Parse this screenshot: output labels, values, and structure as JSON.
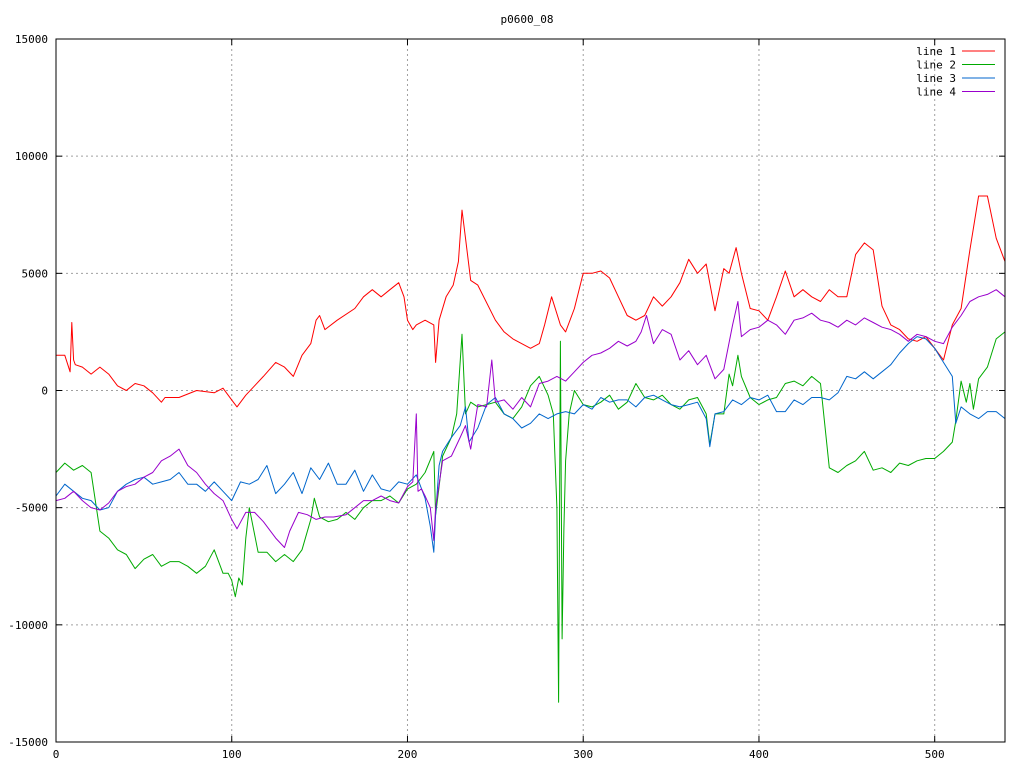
{
  "chart_data": {
    "type": "line",
    "title": "p0600_08",
    "xlabel": "",
    "ylabel": "",
    "xlim": [
      0,
      540
    ],
    "ylim": [
      -15000,
      15000
    ],
    "x_ticks": [
      0,
      100,
      200,
      300,
      400,
      500
    ],
    "y_ticks": [
      -15000,
      -10000,
      -5000,
      0,
      5000,
      10000,
      15000
    ],
    "grid": true,
    "legend_position": "top-right",
    "series": [
      {
        "name": "line 1",
        "color": "#ff0000",
        "x": [
          0,
          5,
          8,
          9,
          10,
          11,
          15,
          20,
          25,
          30,
          35,
          40,
          45,
          50,
          55,
          60,
          62,
          70,
          80,
          90,
          95,
          100,
          103,
          108,
          113,
          118,
          125,
          130,
          135,
          140,
          145,
          148,
          150,
          153,
          160,
          170,
          175,
          180,
          185,
          190,
          195,
          198,
          200,
          203,
          205,
          210,
          215,
          216,
          218,
          222,
          226,
          229,
          231,
          233,
          236,
          240,
          250,
          255,
          260,
          270,
          275,
          278,
          282,
          287,
          290,
          295,
          300,
          305,
          310,
          315,
          320,
          325,
          330,
          335,
          340,
          345,
          350,
          355,
          360,
          365,
          370,
          375,
          380,
          383,
          387,
          390,
          395,
          400,
          405,
          410,
          415,
          420,
          425,
          430,
          435,
          440,
          445,
          450,
          455,
          460,
          465,
          470,
          475,
          480,
          485,
          490,
          495,
          500,
          505,
          510,
          515,
          520,
          525,
          530,
          535,
          540
        ],
        "values": [
          1500,
          1500,
          800,
          2900,
          1300,
          1100,
          1000,
          700,
          1000,
          700,
          200,
          0,
          300,
          200,
          -100,
          -500,
          -300,
          -300,
          0,
          -100,
          100,
          -400,
          -700,
          -200,
          200,
          600,
          1200,
          1000,
          600,
          1500,
          2000,
          3000,
          3200,
          2600,
          3000,
          3500,
          4000,
          4300,
          4000,
          4300,
          4600,
          4000,
          3000,
          2600,
          2800,
          3000,
          2800,
          1200,
          3000,
          4000,
          4500,
          5500,
          7700,
          6500,
          4700,
          4500,
          3000,
          2500,
          2200,
          1800,
          2000,
          2800,
          4000,
          2800,
          2500,
          3500,
          5000,
          5000,
          5100,
          4800,
          4000,
          3200,
          3000,
          3200,
          4000,
          3600,
          4000,
          4600,
          5600,
          5000,
          5400,
          3400,
          5200,
          5000,
          6100,
          5000,
          3500,
          3400,
          3000,
          4000,
          5100,
          4000,
          4300,
          4000,
          3800,
          4300,
          4000,
          4000,
          5800,
          6300,
          6000,
          3600,
          2800,
          2600,
          2200,
          2100,
          2300,
          1800,
          1300,
          2800,
          3500,
          6000,
          8300,
          8300,
          6500,
          5500
        ]
      },
      {
        "name": "line 2",
        "color": "#00aa00",
        "x": [
          0,
          5,
          10,
          15,
          20,
          25,
          30,
          35,
          40,
          45,
          50,
          55,
          60,
          65,
          70,
          75,
          80,
          85,
          90,
          95,
          98,
          100,
          102,
          104,
          106,
          108,
          110,
          115,
          120,
          125,
          130,
          135,
          140,
          145,
          147,
          150,
          155,
          160,
          165,
          170,
          175,
          180,
          185,
          190,
          195,
          200,
          205,
          210,
          215,
          216,
          218,
          220,
          225,
          228,
          231,
          233,
          236,
          240,
          245,
          250,
          255,
          260,
          265,
          270,
          275,
          280,
          283,
          285,
          286,
          287,
          288,
          289,
          290,
          292,
          295,
          300,
          305,
          310,
          315,
          320,
          325,
          330,
          335,
          340,
          345,
          350,
          355,
          360,
          365,
          370,
          372,
          375,
          380,
          383,
          385,
          388,
          390,
          395,
          400,
          405,
          410,
          415,
          420,
          425,
          430,
          435,
          440,
          445,
          450,
          455,
          460,
          465,
          470,
          475,
          480,
          485,
          490,
          495,
          500,
          505,
          510,
          512,
          515,
          518,
          520,
          522,
          525,
          530,
          535,
          540
        ],
        "values": [
          -3500,
          -3100,
          -3400,
          -3200,
          -3500,
          -6000,
          -6300,
          -6800,
          -7000,
          -7600,
          -7200,
          -7000,
          -7500,
          -7300,
          -7300,
          -7500,
          -7800,
          -7500,
          -6800,
          -7800,
          -7800,
          -8100,
          -8800,
          -8000,
          -8300,
          -6300,
          -5000,
          -6900,
          -6900,
          -7300,
          -7000,
          -7300,
          -6800,
          -5500,
          -4600,
          -5400,
          -5600,
          -5500,
          -5200,
          -5500,
          -5000,
          -4700,
          -4700,
          -4500,
          -4800,
          -4200,
          -4000,
          -3500,
          -2600,
          -5300,
          -4100,
          -2800,
          -2000,
          -1000,
          2400,
          -1000,
          -500,
          -700,
          -600,
          -500,
          -1000,
          -1200,
          -700,
          200,
          600,
          -200,
          -1000,
          -5000,
          -13300,
          2100,
          -10600,
          -5900,
          -3000,
          -1000,
          0,
          -600,
          -700,
          -500,
          -200,
          -800,
          -500,
          300,
          -300,
          -400,
          -200,
          -600,
          -800,
          -400,
          -300,
          -1000,
          -2300,
          -1000,
          -1000,
          700,
          200,
          1500,
          600,
          -300,
          -600,
          -400,
          -300,
          300,
          400,
          200,
          600,
          300,
          -3300,
          -3500,
          -3200,
          -3000,
          -2600,
          -3400,
          -3300,
          -3500,
          -3100,
          -3200,
          -3000,
          -2900,
          -2900,
          -2600,
          -2200,
          -1300,
          400,
          -500,
          300,
          -800,
          500,
          1000,
          2200,
          2500
        ]
      },
      {
        "name": "line 3",
        "color": "#0066cc",
        "x": [
          0,
          5,
          10,
          15,
          20,
          25,
          30,
          35,
          40,
          45,
          50,
          55,
          60,
          65,
          70,
          75,
          80,
          85,
          90,
          95,
          100,
          105,
          110,
          115,
          120,
          125,
          130,
          135,
          140,
          145,
          150,
          155,
          160,
          165,
          170,
          175,
          180,
          185,
          190,
          195,
          200,
          205,
          210,
          213,
          215,
          216,
          218,
          220,
          225,
          230,
          233,
          235,
          240,
          245,
          250,
          255,
          260,
          265,
          270,
          275,
          280,
          285,
          290,
          295,
          300,
          305,
          310,
          315,
          320,
          325,
          330,
          335,
          340,
          345,
          350,
          355,
          360,
          365,
          370,
          372,
          375,
          380,
          385,
          390,
          395,
          400,
          405,
          410,
          415,
          420,
          425,
          430,
          435,
          440,
          445,
          450,
          455,
          460,
          465,
          470,
          475,
          480,
          485,
          490,
          495,
          500,
          505,
          510,
          512,
          515,
          520,
          525,
          530,
          535,
          540
        ],
        "values": [
          -4500,
          -4000,
          -4300,
          -4600,
          -4700,
          -5100,
          -5000,
          -4300,
          -4000,
          -3800,
          -3700,
          -4000,
          -3900,
          -3800,
          -3500,
          -4000,
          -4000,
          -4300,
          -3900,
          -4300,
          -4700,
          -3900,
          -4000,
          -3800,
          -3200,
          -4400,
          -4000,
          -3500,
          -4400,
          -3300,
          -3800,
          -3100,
          -4000,
          -4000,
          -3400,
          -4300,
          -3600,
          -4200,
          -4300,
          -3900,
          -4000,
          -3600,
          -4600,
          -5800,
          -6900,
          -5300,
          -3200,
          -2600,
          -2000,
          -1500,
          -700,
          -2200,
          -1600,
          -600,
          -300,
          -1000,
          -1200,
          -1600,
          -1400,
          -1000,
          -1200,
          -1000,
          -900,
          -1000,
          -600,
          -800,
          -300,
          -500,
          -400,
          -400,
          -700,
          -300,
          -200,
          -400,
          -600,
          -700,
          -600,
          -500,
          -1200,
          -2400,
          -1000,
          -900,
          -400,
          -600,
          -300,
          -400,
          -200,
          -900,
          -900,
          -400,
          -600,
          -300,
          -300,
          -400,
          -100,
          600,
          500,
          800,
          500,
          800,
          1100,
          1600,
          2000,
          2300,
          2200,
          1800,
          1200,
          600,
          -1400,
          -700,
          -1000,
          -1200,
          -900,
          -900,
          -1200
        ]
      },
      {
        "name": "line 4",
        "color": "#9900cc",
        "x": [
          0,
          5,
          10,
          15,
          20,
          25,
          30,
          35,
          40,
          45,
          50,
          55,
          60,
          65,
          70,
          75,
          80,
          85,
          90,
          95,
          100,
          103,
          108,
          113,
          118,
          125,
          130,
          133,
          138,
          143,
          148,
          153,
          158,
          165,
          170,
          175,
          180,
          185,
          190,
          195,
          200,
          203,
          205,
          206,
          208,
          210,
          213,
          215,
          216,
          218,
          220,
          225,
          230,
          233,
          236,
          240,
          245,
          248,
          250,
          255,
          260,
          265,
          270,
          275,
          280,
          285,
          290,
          295,
          300,
          305,
          310,
          315,
          320,
          325,
          330,
          333,
          336,
          340,
          345,
          350,
          355,
          360,
          365,
          370,
          375,
          380,
          385,
          388,
          390,
          395,
          400,
          405,
          410,
          415,
          420,
          425,
          430,
          435,
          440,
          445,
          450,
          455,
          460,
          465,
          470,
          475,
          480,
          485,
          490,
          495,
          500,
          505,
          510,
          515,
          520,
          525,
          530,
          535,
          540
        ],
        "values": [
          -4700,
          -4600,
          -4300,
          -4700,
          -5000,
          -5100,
          -4800,
          -4300,
          -4100,
          -4000,
          -3700,
          -3500,
          -3000,
          -2800,
          -2500,
          -3200,
          -3500,
          -4000,
          -4400,
          -4700,
          -5500,
          -5900,
          -5200,
          -5200,
          -5600,
          -6300,
          -6700,
          -6000,
          -5200,
          -5300,
          -5500,
          -5400,
          -5400,
          -5300,
          -5000,
          -4700,
          -4700,
          -4500,
          -4700,
          -4800,
          -4100,
          -3900,
          -1000,
          -4300,
          -4200,
          -4500,
          -5000,
          -6400,
          -5000,
          -4000,
          -3000,
          -2800,
          -2000,
          -1500,
          -2500,
          -600,
          -700,
          1300,
          -500,
          -400,
          -800,
          -300,
          -700,
          300,
          400,
          600,
          400,
          800,
          1200,
          1500,
          1600,
          1800,
          2100,
          1900,
          2100,
          2500,
          3200,
          2000,
          2600,
          2400,
          1300,
          1700,
          1100,
          1500,
          500,
          900,
          2800,
          3800,
          2300,
          2600,
          2700,
          3000,
          2800,
          2400,
          3000,
          3100,
          3300,
          3000,
          2900,
          2700,
          3000,
          2800,
          3100,
          2900,
          2700,
          2600,
          2400,
          2100,
          2400,
          2300,
          2100,
          2000,
          2700,
          3200,
          3800,
          4000,
          4100,
          4300,
          4000
        ]
      }
    ]
  }
}
